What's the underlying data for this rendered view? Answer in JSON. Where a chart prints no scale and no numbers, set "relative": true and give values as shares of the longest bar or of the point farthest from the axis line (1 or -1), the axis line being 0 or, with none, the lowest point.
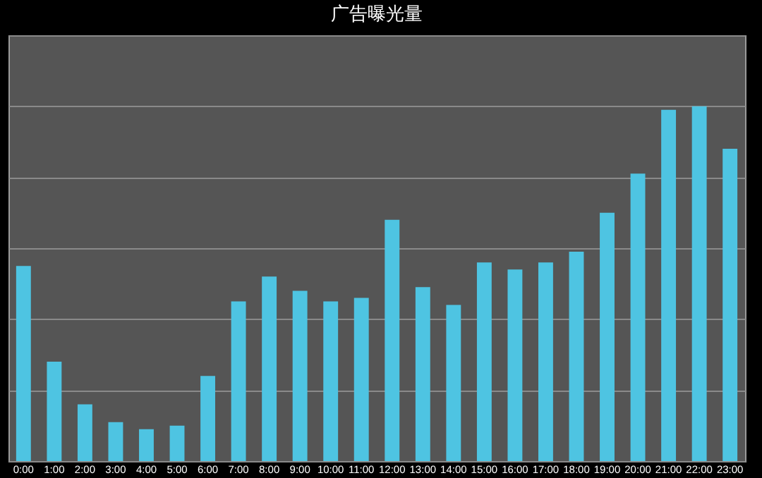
{
  "chart_data": {
    "type": "bar",
    "title": "广告曝光量",
    "relative": true,
    "color": "#4ec4e2",
    "grid": "y",
    "categories": [
      "0:00",
      "1:00",
      "2:00",
      "3:00",
      "4:00",
      "5:00",
      "6:00",
      "7:00",
      "8:00",
      "9:00",
      "10:00",
      "11:00",
      "12:00",
      "13:00",
      "14:00",
      "15:00",
      "16:00",
      "17:00",
      "18:00",
      "19:00",
      "20:00",
      "21:00",
      "22:00",
      "23:00"
    ],
    "values": [
      0.55,
      0.28,
      0.16,
      0.11,
      0.09,
      0.1,
      0.24,
      0.45,
      0.52,
      0.48,
      0.45,
      0.46,
      0.68,
      0.49,
      0.44,
      0.56,
      0.54,
      0.56,
      0.59,
      0.7,
      0.81,
      0.99,
      1,
      0.88
    ]
  }
}
